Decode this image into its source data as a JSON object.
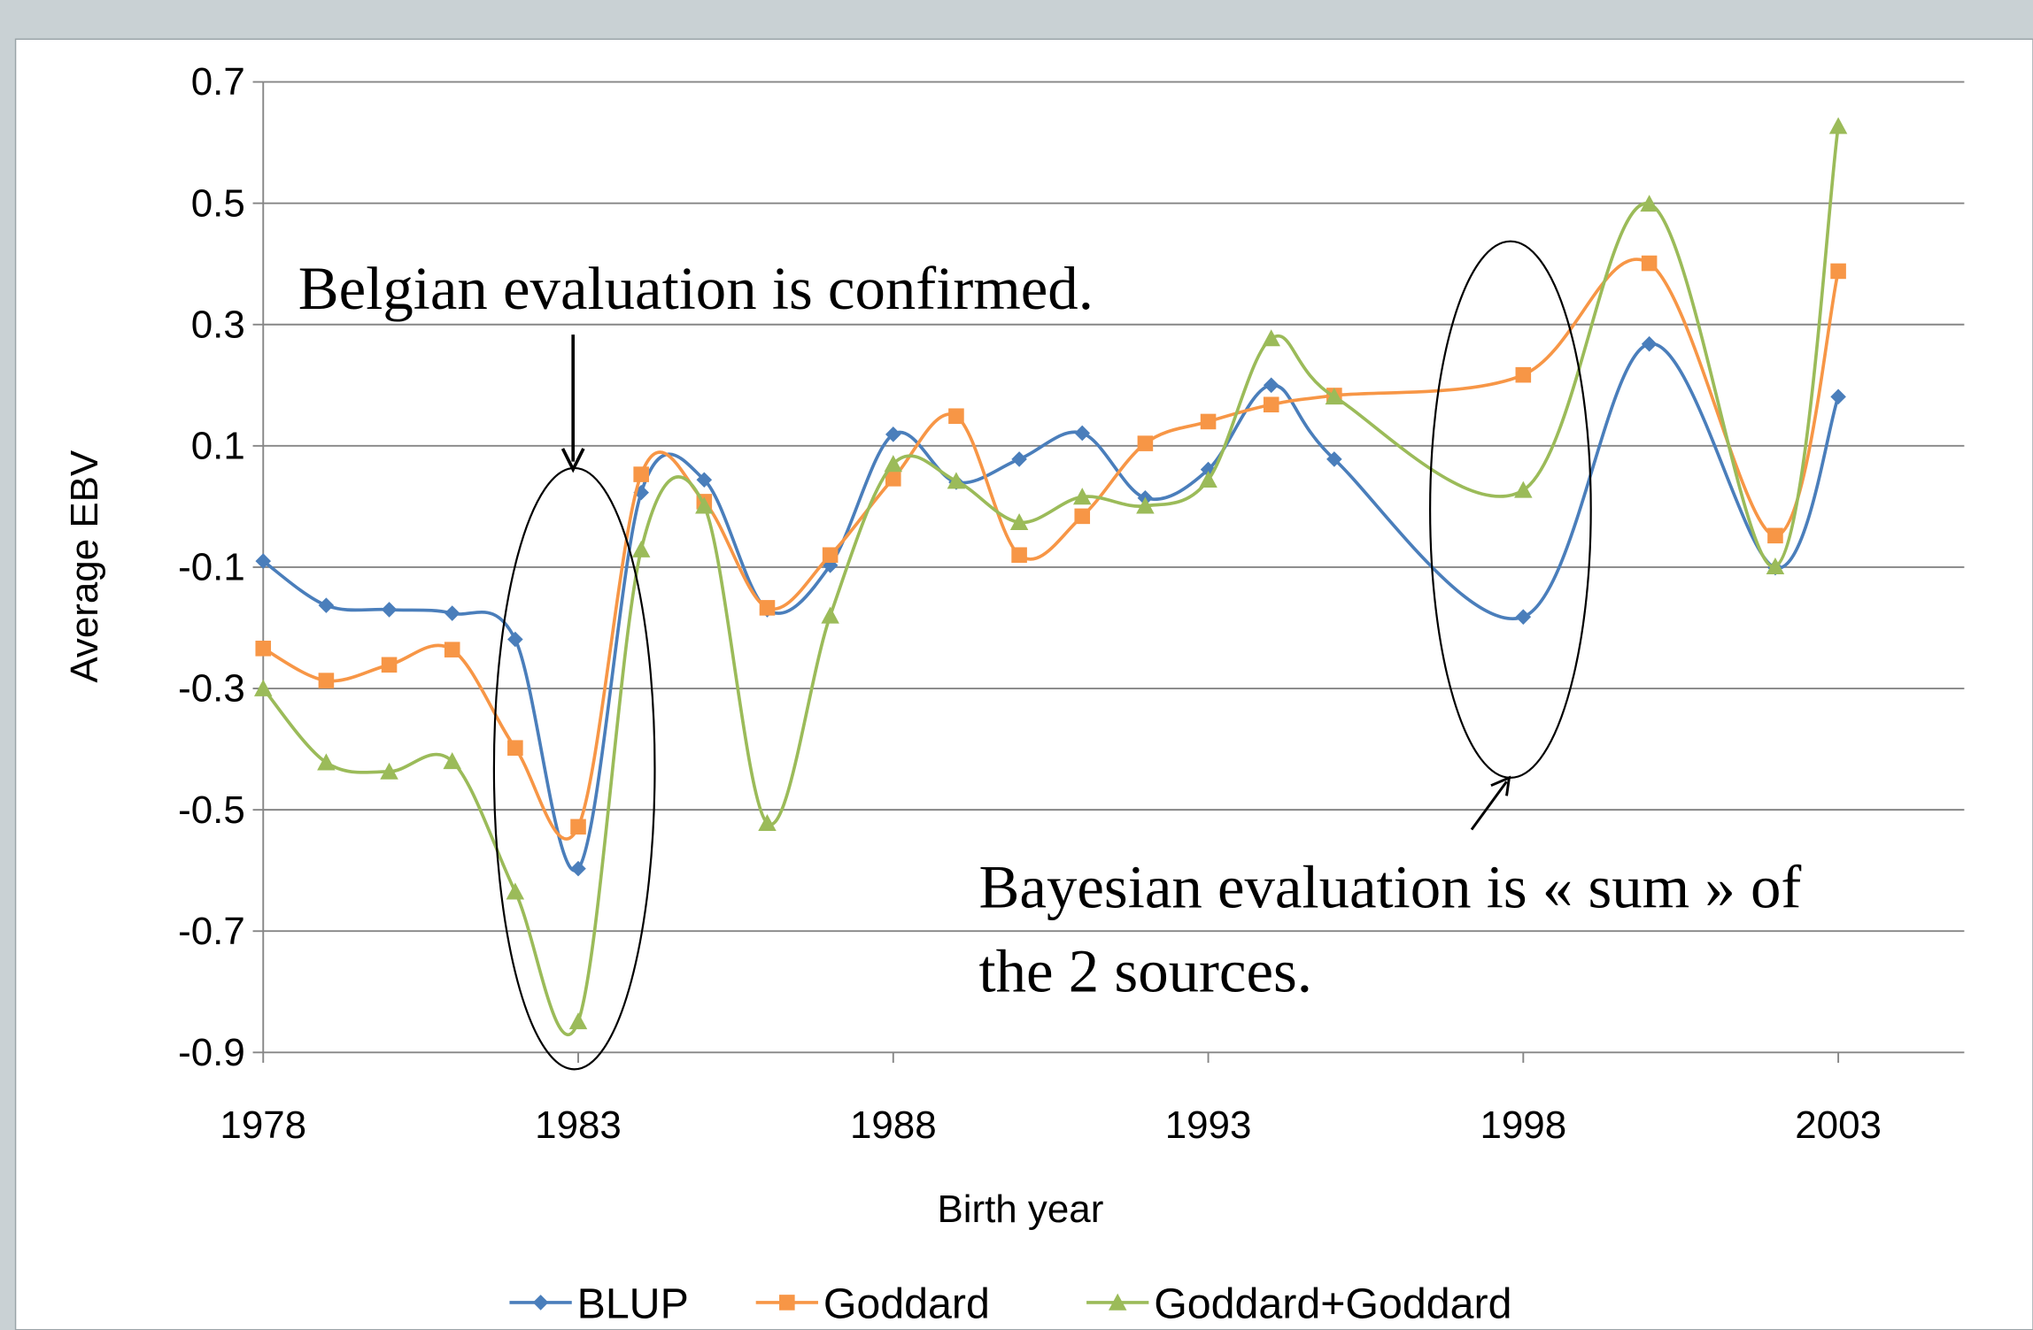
{
  "chart_data": {
    "type": "line",
    "x_label": "Birth year",
    "y_label": "Average EBV",
    "x": [
      1978,
      1979,
      1980,
      1981,
      1982,
      1983,
      1984,
      1985,
      1986,
      1987,
      1988,
      1989,
      1990,
      1991,
      1992,
      1993,
      1994,
      1995,
      1998,
      2000,
      2002,
      2003
    ],
    "series": [
      {
        "name": "BLUP",
        "color": "#4a7ebb",
        "marker": "diamond",
        "values": [
          -0.09,
          -0.163,
          -0.17,
          -0.176,
          -0.219,
          -0.597,
          0.023,
          0.044,
          -0.17,
          -0.097,
          0.119,
          0.04,
          0.078,
          0.121,
          0.014,
          0.061,
          0.2,
          0.078,
          -0.182,
          0.268,
          -0.101,
          0.181
        ]
      },
      {
        "name": "Goddard",
        "color": "#f79646",
        "marker": "square",
        "values": [
          -0.234,
          -0.287,
          -0.261,
          -0.236,
          -0.398,
          -0.528,
          0.053,
          0.008,
          -0.167,
          -0.08,
          0.046,
          0.149,
          -0.08,
          -0.016,
          0.104,
          0.14,
          0.168,
          0.183,
          0.217,
          0.401,
          -0.048,
          0.388
        ]
      },
      {
        "name": "Goddard+Goddard",
        "color": "#9bbb59",
        "marker": "triangle",
        "values": [
          -0.3,
          -0.422,
          -0.437,
          -0.42,
          -0.635,
          -0.849,
          -0.071,
          0.001,
          -0.522,
          -0.18,
          0.07,
          0.042,
          -0.026,
          0.016,
          0.001,
          0.044,
          0.277,
          0.181,
          0.027,
          0.499,
          -0.099,
          0.627
        ]
      }
    ],
    "xlim": [
      1978,
      2005
    ],
    "xticks": [
      1978,
      1983,
      1988,
      1993,
      1998,
      2003
    ],
    "ylim": [
      -0.9,
      0.7
    ],
    "yticks": [
      -0.9,
      -0.7,
      -0.5,
      -0.3,
      -0.1,
      0.1,
      0.3,
      0.5,
      0.7
    ],
    "grid": true,
    "legend": "bottom",
    "annotations": [
      "Belgian evaluation is confirmed.",
      "Bayesian evaluation is « sum » of",
      "the 2 sources."
    ]
  }
}
